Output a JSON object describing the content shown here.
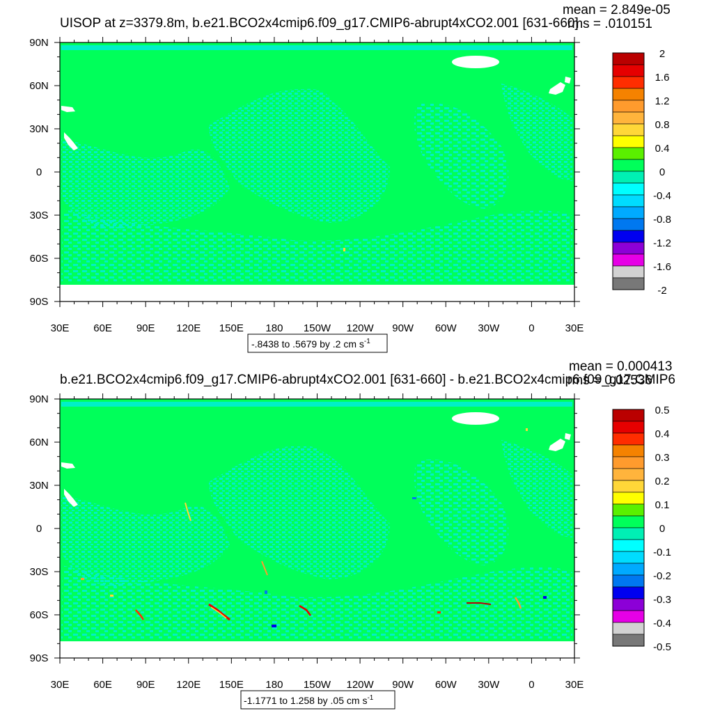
{
  "panels": [
    {
      "title": "UISOP at z=3379.8m, b.e21.BCO2x4cmip6.f09_g17.CMIP6-abrupt4xCO2.001 [631-660]",
      "stats_mean": "mean = 2.849e-05",
      "stats_rms": "rms = .010151",
      "range_label": "-.8438 to .5679 by .2 cm s",
      "range_unit_exp": "-1",
      "colorbar_labels": [
        "2",
        "1.6",
        "1.2",
        "0.8",
        "0.4",
        "0",
        "-0.4",
        "-0.8",
        "-1.2",
        "-1.6",
        "-2"
      ]
    },
    {
      "title": "b.e21.BCO2x4cmip6.f09_g17.CMIP6-abrupt4xCO2.001 [631-660] - b.e21.BCO2x4cmip6.f09_g17.CMIP6",
      "stats_mean": "mean = 0.000413",
      "stats_rms": "rms = 0.02536",
      "range_label": "-1.1771 to 1.258 by .05 cm s",
      "range_unit_exp": "-1",
      "colorbar_labels": [
        "0.5",
        "0.4",
        "0.3",
        "0.2",
        "0.1",
        "0",
        "-0.1",
        "-0.2",
        "-0.3",
        "-0.4",
        "-0.5"
      ]
    }
  ],
  "chart_data": [
    {
      "type": "heatmap",
      "title": "UISOP at z=3379.8m, b.e21.BCO2x4cmip6.f09_g17.CMIP6-abrupt4xCO2.001 [631-660]",
      "x_ticks": [
        "30E",
        "60E",
        "90E",
        "120E",
        "150E",
        "180",
        "150W",
        "120W",
        "90W",
        "60W",
        "30W",
        "0",
        "30E"
      ],
      "y_ticks": [
        "90N",
        "60N",
        "30N",
        "0",
        "30S",
        "60S",
        "90S"
      ],
      "colorbar_levels": [
        -2,
        -1.6,
        -1.2,
        -0.8,
        -0.4,
        0,
        0.4,
        0.8,
        1.2,
        1.6,
        2
      ],
      "data_min": -0.8438,
      "data_max": 0.5679,
      "contour_interval": 0.2,
      "units": "cm s-1",
      "mean": 2.849e-05,
      "rms": 0.010151
    },
    {
      "type": "heatmap",
      "title": "b.e21.BCO2x4cmip6.f09_g17.CMIP6-abrupt4xCO2.001 [631-660] - b.e21.BCO2x4cmip6.f09_g17.CMIP6",
      "x_ticks": [
        "30E",
        "60E",
        "90E",
        "120E",
        "150E",
        "180",
        "150W",
        "120W",
        "90W",
        "60W",
        "30W",
        "0",
        "30E"
      ],
      "y_ticks": [
        "90N",
        "60N",
        "30N",
        "0",
        "30S",
        "60S",
        "90S"
      ],
      "colorbar_levels": [
        -0.5,
        -0.4,
        -0.3,
        -0.2,
        -0.1,
        0,
        0.1,
        0.2,
        0.3,
        0.4,
        0.5
      ],
      "data_min": -1.1771,
      "data_max": 1.258,
      "contour_interval": 0.05,
      "units": "cm s-1",
      "mean": 0.000413,
      "rms": 0.02536
    }
  ],
  "palette": [
    "#ba0000",
    "#e60000",
    "#ff2d00",
    "#f58200",
    "#ff9b2d",
    "#ffb43c",
    "#ffd738",
    "#ffff00",
    "#5af000",
    "#00ff5a",
    "#00f0b4",
    "#00ffff",
    "#00dcff",
    "#00aaff",
    "#0078f0",
    "#0000f0",
    "#8c00d7",
    "#e600e6",
    "#d2d2d2",
    "#787878"
  ],
  "map_colors": {
    "background": "#00ff5a",
    "stipple": "#00f0c8",
    "land_mask": "#ffffff"
  }
}
